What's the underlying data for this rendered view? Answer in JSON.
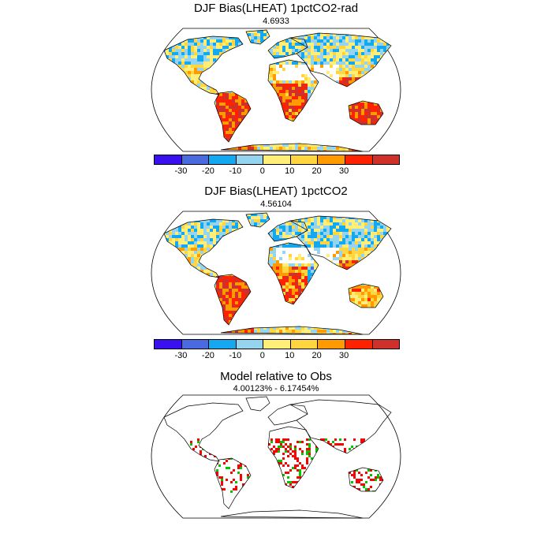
{
  "panels": [
    {
      "title": "DJF Bias(LHEAT) 1pctCO2-rad",
      "subtitle": "4.6933",
      "colorbar": {
        "colors": [
          "#3b10f0",
          "#4a6ae0",
          "#14a8f0",
          "#94d4ee",
          "#ffee78",
          "#ffd640",
          "#ff9a00",
          "#ff2200",
          "#d0302a"
        ],
        "tick_labels": [
          "-30",
          "-20",
          "-10",
          "0",
          "10",
          "20",
          "30"
        ]
      }
    },
    {
      "title": "DJF Bias(LHEAT) 1pctCO2",
      "subtitle": "4.56104",
      "colorbar": {
        "colors": [
          "#3b10f0",
          "#4a6ae0",
          "#14a8f0",
          "#94d4ee",
          "#ffee78",
          "#ffd640",
          "#ff9a00",
          "#ff2200",
          "#d0302a"
        ],
        "tick_labels": [
          "-30",
          "-20",
          "-10",
          "0",
          "10",
          "20",
          "30"
        ]
      }
    },
    {
      "title": "Model relative to Obs",
      "subtitle": "4.00123% - 6.17454%",
      "colors": {
        "worse": "#ff0000",
        "better": "#00c800"
      }
    }
  ]
}
